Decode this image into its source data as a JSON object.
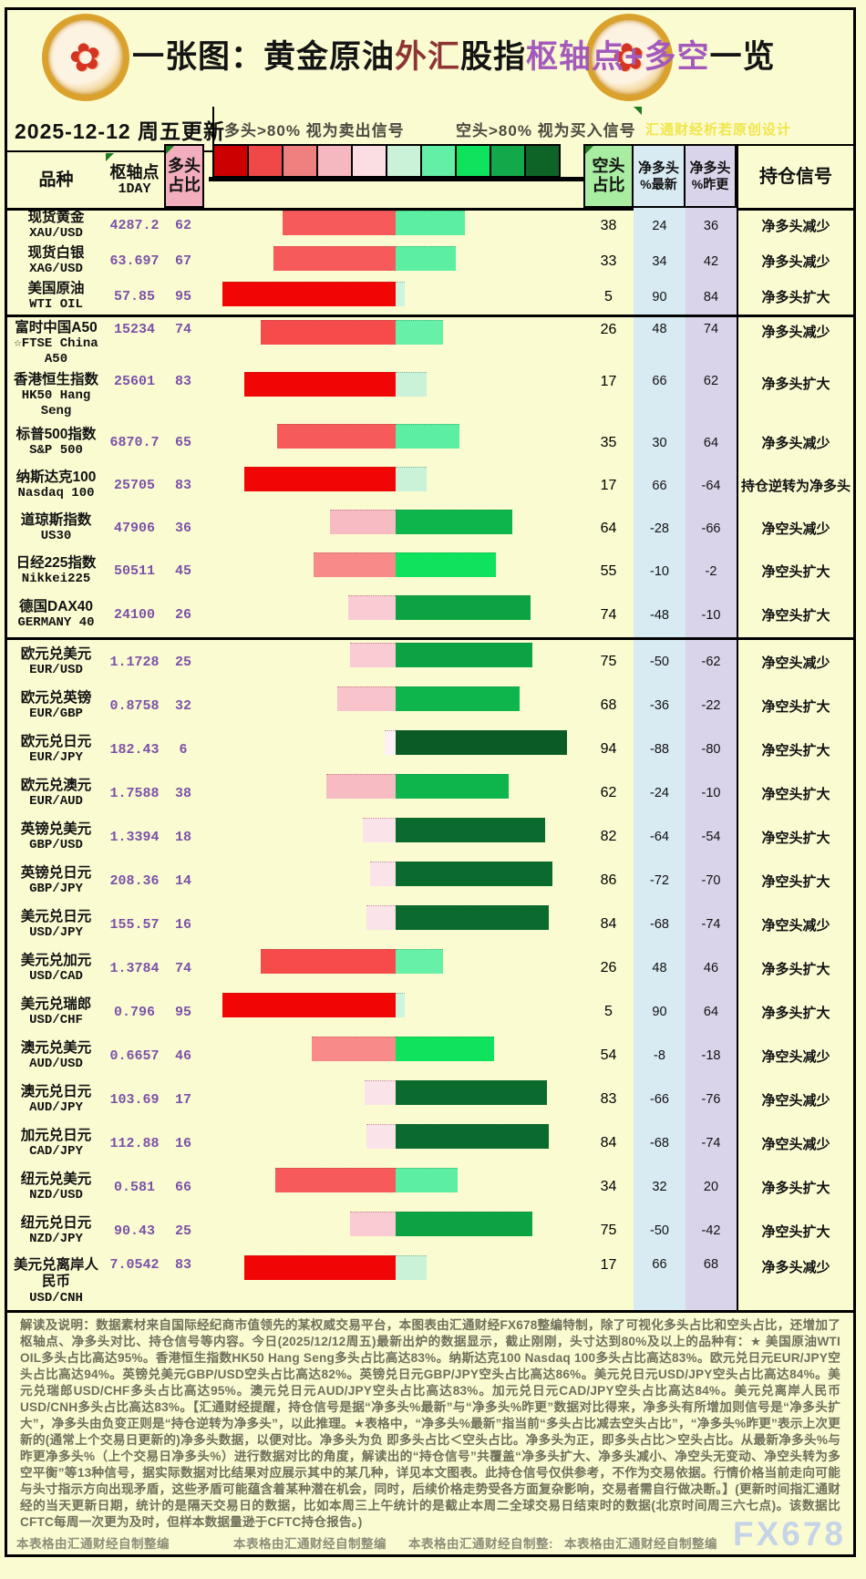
{
  "title": {
    "segments": [
      {
        "text": "一张图：黄金原油",
        "color": "#141414"
      },
      {
        "text": "外汇",
        "color": "#8E3434"
      },
      {
        "text": "股指",
        "color": "#141414"
      },
      {
        "text": "枢轴点+多空",
        "color": "#A35ABB"
      },
      {
        "text": "一览",
        "color": "#141414"
      }
    ]
  },
  "logo_glyph": "✿",
  "date_band": {
    "date_text": "2025-12-12 周五更新",
    "long_hint": "多头>80% 视为卖出信号",
    "short_hint": "空头>80% 视为买入信号",
    "credit": "汇通财经析若原创设计"
  },
  "header": {
    "variety": "品种",
    "pivot_l1": "枢轴点",
    "pivot_l2": "1DAY",
    "long_l1": "多头",
    "long_l2": "占比",
    "short_l1": "空头",
    "short_l2": "占比",
    "latest_l1": "净多头",
    "latest_l2": "%最新",
    "prev_l1": "净多头",
    "prev_l2": "%昨更",
    "signal": "持仓信号"
  },
  "legend_colors": [
    "#CC0000",
    "#F04848",
    "#F08080",
    "#F5B8C0",
    "#FBDDE4",
    "#C9F2D8",
    "#63EFA5",
    "#0FE35E",
    "#12A94A",
    "#0E6327"
  ],
  "rows": [
    {
      "name_lines": [
        "现货黄金",
        "XAU/USD"
      ],
      "group": "commodity",
      "pivot": "4287.2",
      "long_pct": 62,
      "short_pct": 38,
      "net_latest": "24",
      "net_prev": "36",
      "signal": "净多头减少"
    },
    {
      "name_lines": [
        "现货白银",
        "XAG/USD"
      ],
      "group": "commodity",
      "pivot": "63.697",
      "long_pct": 67,
      "short_pct": 33,
      "net_latest": "34",
      "net_prev": "42",
      "signal": "净多头减少"
    },
    {
      "name_lines": [
        "美国原油",
        "WTI OIL"
      ],
      "group": "commodity",
      "pivot": "57.85",
      "long_pct": 95,
      "short_pct": 5,
      "net_latest": "90",
      "net_prev": "84",
      "signal": "净多头扩大"
    },
    {
      "name_lines": [
        "富时中国A50",
        "☆FTSE China",
        "A50"
      ],
      "group": "index",
      "pivot": "15234",
      "long_pct": 74,
      "short_pct": 26,
      "net_latest": "48",
      "net_prev": "74",
      "signal": "净多头减少"
    },
    {
      "name_lines": [
        "香港恒生指数",
        "HK50 Hang",
        "Seng"
      ],
      "group": "index",
      "pivot": "25601",
      "long_pct": 83,
      "short_pct": 17,
      "net_latest": "66",
      "net_prev": "62",
      "signal": "净多头扩大"
    },
    {
      "name_lines": [
        "标普500指数",
        "S&P 500"
      ],
      "group": "index",
      "pivot": "6870.7",
      "long_pct": 65,
      "short_pct": 35,
      "net_latest": "30",
      "net_prev": "64",
      "signal": "净多头减少"
    },
    {
      "name_lines": [
        "纳斯达克100",
        "Nasdaq 100"
      ],
      "group": "index",
      "pivot": "25705",
      "long_pct": 83,
      "short_pct": 17,
      "net_latest": "66",
      "net_prev": "-64",
      "signal": "持仓逆转为净多头"
    },
    {
      "name_lines": [
        "道琼斯指数",
        "US30"
      ],
      "group": "index",
      "pivot": "47906",
      "long_pct": 36,
      "short_pct": 64,
      "net_latest": "-28",
      "net_prev": "-66",
      "signal": "净空头减少"
    },
    {
      "name_lines": [
        "日经225指数",
        "Nikkei225"
      ],
      "group": "index",
      "pivot": "50511",
      "long_pct": 45,
      "short_pct": 55,
      "net_latest": "-10",
      "net_prev": "-2",
      "signal": "净空头扩大"
    },
    {
      "name_lines": [
        "德国DAX40",
        "GERMANY 40"
      ],
      "group": "index",
      "pivot": "24100",
      "long_pct": 26,
      "short_pct": 74,
      "net_latest": "-48",
      "net_prev": "-10",
      "signal": "净空头扩大"
    },
    {
      "name_lines": [
        "欧元兑美元",
        "EUR/USD"
      ],
      "group": "fx",
      "pivot": "1.1728",
      "long_pct": 25,
      "short_pct": 75,
      "net_latest": "-50",
      "net_prev": "-62",
      "signal": "净空头减少"
    },
    {
      "name_lines": [
        "欧元兑英镑",
        "EUR/GBP"
      ],
      "group": "fx",
      "pivot": "0.8758",
      "long_pct": 32,
      "short_pct": 68,
      "net_latest": "-36",
      "net_prev": "-22",
      "signal": "净空头扩大"
    },
    {
      "name_lines": [
        "欧元兑日元",
        "EUR/JPY"
      ],
      "group": "fx",
      "pivot": "182.43",
      "long_pct": 6,
      "short_pct": 94,
      "net_latest": "-88",
      "net_prev": "-80",
      "signal": "净空头扩大"
    },
    {
      "name_lines": [
        "欧元兑澳元",
        "EUR/AUD"
      ],
      "group": "fx",
      "pivot": "1.7588",
      "long_pct": 38,
      "short_pct": 62,
      "net_latest": "-24",
      "net_prev": "-10",
      "signal": "净空头扩大"
    },
    {
      "name_lines": [
        "英镑兑美元",
        "GBP/USD"
      ],
      "group": "fx",
      "pivot": "1.3394",
      "long_pct": 18,
      "short_pct": 82,
      "net_latest": "-64",
      "net_prev": "-54",
      "signal": "净空头扩大"
    },
    {
      "name_lines": [
        "英镑兑日元",
        "GBP/JPY"
      ],
      "group": "fx",
      "pivot": "208.36",
      "long_pct": 14,
      "short_pct": 86,
      "net_latest": "-72",
      "net_prev": "-70",
      "signal": "净空头扩大"
    },
    {
      "name_lines": [
        "美元兑日元",
        "USD/JPY"
      ],
      "group": "fx",
      "pivot": "155.57",
      "long_pct": 16,
      "short_pct": 84,
      "net_latest": "-68",
      "net_prev": "-74",
      "signal": "净空头减少"
    },
    {
      "name_lines": [
        "美元兑加元",
        "USD/CAD"
      ],
      "group": "fx",
      "pivot": "1.3784",
      "long_pct": 74,
      "short_pct": 26,
      "net_latest": "48",
      "net_prev": "46",
      "signal": "净多头扩大"
    },
    {
      "name_lines": [
        "美元兑瑞郎",
        "USD/CHF"
      ],
      "group": "fx",
      "pivot": "0.796",
      "long_pct": 95,
      "short_pct": 5,
      "net_latest": "90",
      "net_prev": "64",
      "signal": "净多头扩大"
    },
    {
      "name_lines": [
        "澳元兑美元",
        "AUD/USD"
      ],
      "group": "fx",
      "pivot": "0.6657",
      "long_pct": 46,
      "short_pct": 54,
      "net_latest": "-8",
      "net_prev": "-18",
      "signal": "净空头减少"
    },
    {
      "name_lines": [
        "澳元兑日元",
        "AUD/JPY"
      ],
      "group": "fx",
      "pivot": "103.69",
      "long_pct": 17,
      "short_pct": 83,
      "net_latest": "-66",
      "net_prev": "-76",
      "signal": "净空头减少"
    },
    {
      "name_lines": [
        "加元兑日元",
        "CAD/JPY"
      ],
      "group": "fx",
      "pivot": "112.88",
      "long_pct": 16,
      "short_pct": 84,
      "net_latest": "-68",
      "net_prev": "-74",
      "signal": "净空头减少"
    },
    {
      "name_lines": [
        "纽元兑美元",
        "NZD/USD"
      ],
      "group": "fx",
      "pivot": "0.581",
      "long_pct": 66,
      "short_pct": 34,
      "net_latest": "32",
      "net_prev": "20",
      "signal": "净多头扩大"
    },
    {
      "name_lines": [
        "纽元兑日元",
        "NZD/JPY"
      ],
      "group": "fx",
      "pivot": "90.43",
      "long_pct": 25,
      "short_pct": 75,
      "net_latest": "-50",
      "net_prev": "-42",
      "signal": "净空头扩大"
    },
    {
      "name_lines": [
        "美元兑离岸人",
        "民币",
        "USD/CNH"
      ],
      "group": "fx",
      "pivot": "7.0542",
      "long_pct": 83,
      "short_pct": 17,
      "net_latest": "66",
      "net_prev": "68",
      "signal": "净多头减少"
    }
  ],
  "footer": {
    "explanation": "解读及说明：数据素材来自国际经纪商市值领先的某权威交易平台，本图表由汇通财经FX678整编特制，除了可视化多头占比和空头占比，还增加了枢轴点、净多头对比、持仓信号等内容。今日(2025/12/12周五)最新出炉的数据显示，截止刚刚，头寸达到80%及以上的品种有：★ 美国原油WTI OIL多头占比高达95%。香港恒生指数HK50 Hang Seng多头占比高达83%。纳斯达克100 Nasdaq 100多头占比高达83%。欧元兑日元EUR/JPY空头占比高达94%。英镑兑美元GBP/USD空头占比高达82%。英镑兑日元GBP/JPY空头占比高达86%。美元兑日元USD/JPY空头占比高达84%。美元兑瑞郎USD/CHF多头占比高达95%。澳元兑日元AUD/JPY空头占比高达83%。加元兑日元CAD/JPY空头占比高达84%。美元兑离岸人民币USD/CNH多头占比高达83%。【汇通财经提醒，持仓信号是据“净多头%最新”与“净多头%昨更”数据对比得来，净多头有所增加则信号是“净多头扩大”，净多头由负变正则是“持仓逆转为净多头”，以此推理。★表格中，“净多头%最新”指当前“多头占比减去空头占比”，“净多头%昨更”表示上次更新的(通常上个交易日更新的)净多头数据，以便对比。净多头为负 即多头占比＜空头占比。净多头为正，即多头占比＞空头占比。从最新净多头%与昨更净多头%（上个交易日净多头%）进行数据对比的角度，解读出的“持仓信号”共覆盖“净多头扩大、净多头减小、净空头无变动、净空头转为多空平衡”等13种信号，据实际数据对比结果对应展示其中的某几种，详见本文图表。此持仓信号仅供参考，不作为交易依据。行情价格当前走向可能与头寸指示方向出现矛盾，这些矛盾可能蕴含着某种潜在机会，同时，后续价格走势受各方面复杂影响，交易者需自行做决断。】(更新时间指汇通财经的当天更新日期，统计的是隔天交易日的数据，比如本周三上午统计的是截止本周二全球交易日结束时的数据(北京时间周三六七点)。该数据比CFTC每周一次更为及时，但样本数据量逊于CFTC持仓报告。)",
    "credits": [
      "本表格由汇通财经自制整编",
      "本表格由汇通财经自制整编",
      "本表格由汇通财经自制整:",
      "本表格由汇通财经自制整编"
    ],
    "watermark": "FX678"
  },
  "chart_data": {
    "type": "bar",
    "title": "黄金原油外汇股指枢轴点+多空一览 (2025-12-12)",
    "categories": [
      "XAU/USD",
      "XAG/USD",
      "WTI OIL",
      "FTSE China A50",
      "HK50 Hang Seng",
      "S&P 500",
      "Nasdaq 100",
      "US30",
      "Nikkei225",
      "GERMANY 40",
      "EUR/USD",
      "EUR/GBP",
      "EUR/JPY",
      "EUR/AUD",
      "GBP/USD",
      "GBP/JPY",
      "USD/JPY",
      "USD/CAD",
      "USD/CHF",
      "AUD/USD",
      "AUD/JPY",
      "CAD/JPY",
      "NZD/USD",
      "NZD/JPY",
      "USD/CNH"
    ],
    "series": [
      {
        "name": "枢轴点1DAY",
        "values": [
          4287.2,
          63.697,
          57.85,
          15234,
          25601,
          6870.7,
          25705,
          47906,
          50511,
          24100,
          1.1728,
          0.8758,
          182.43,
          1.7588,
          1.3394,
          208.36,
          155.57,
          1.3784,
          0.796,
          0.6657,
          103.69,
          112.88,
          0.581,
          90.43,
          7.0542
        ]
      },
      {
        "name": "多头占比",
        "values": [
          62,
          67,
          95,
          74,
          83,
          65,
          83,
          36,
          45,
          26,
          25,
          32,
          6,
          38,
          18,
          14,
          16,
          74,
          95,
          46,
          17,
          16,
          66,
          25,
          83
        ]
      },
      {
        "name": "空头占比",
        "values": [
          38,
          33,
          5,
          26,
          17,
          35,
          17,
          64,
          55,
          74,
          75,
          68,
          94,
          62,
          82,
          86,
          84,
          26,
          5,
          54,
          83,
          84,
          34,
          75,
          17
        ]
      },
      {
        "name": "净多头%最新",
        "values": [
          24,
          34,
          90,
          48,
          66,
          30,
          66,
          -28,
          -10,
          -48,
          -50,
          -36,
          -88,
          -24,
          -64,
          -72,
          -68,
          48,
          90,
          -8,
          -66,
          -68,
          32,
          -50,
          66
        ]
      },
      {
        "name": "净多头%昨更",
        "values": [
          36,
          42,
          84,
          74,
          62,
          64,
          -64,
          -66,
          -2,
          -10,
          -62,
          -22,
          -80,
          -10,
          -54,
          -70,
          -74,
          46,
          64,
          -18,
          -76,
          -74,
          20,
          -42,
          68
        ]
      }
    ],
    "xlabel": "品种",
    "ylabel": "占比%",
    "ylim": [
      0,
      100
    ],
    "legend_position": "top",
    "grid": false
  }
}
